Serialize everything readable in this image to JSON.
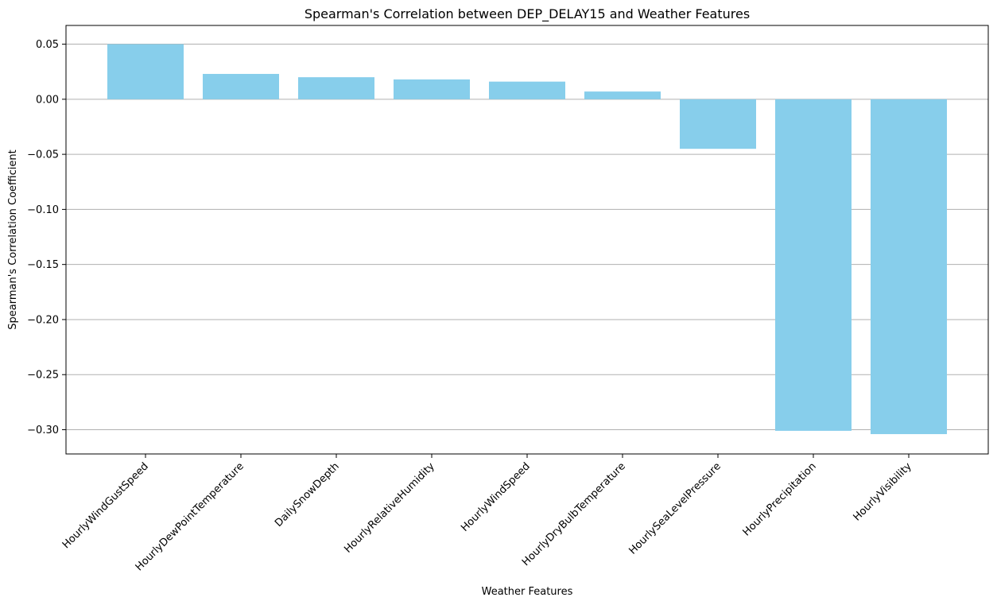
{
  "chart_data": {
    "type": "bar",
    "title": "Spearman's Correlation between DEP_DELAY15 and Weather Features",
    "xlabel": "Weather Features",
    "ylabel": "Spearman's Correlation Coefficient",
    "categories": [
      "HourlyWindGustSpeed",
      "HourlyDewPointTemperature",
      "DailySnowDepth",
      "HourlyRelativeHumidity",
      "HourlyWindSpeed",
      "HourlyDryBulbTemperature",
      "HourlySeaLevelPressure",
      "HourlyPrecipitation",
      "HourlyVisibility"
    ],
    "values": [
      0.05,
      0.023,
      0.02,
      0.018,
      0.016,
      0.007,
      -0.045,
      -0.301,
      -0.304
    ],
    "ylim": [
      -0.322,
      0.067
    ],
    "yticks": [
      0.05,
      0.0,
      -0.05,
      -0.1,
      -0.15,
      -0.2,
      -0.25,
      -0.3
    ],
    "ytick_labels": [
      "0.05",
      "0.00",
      "−0.05",
      "−0.10",
      "−0.15",
      "−0.20",
      "−0.25",
      "−0.30"
    ],
    "grid": "y-axis horizontal lines",
    "bar_color": "#87CEEB",
    "grid_color": "#b0b0b0",
    "axis_color": "#000000"
  }
}
